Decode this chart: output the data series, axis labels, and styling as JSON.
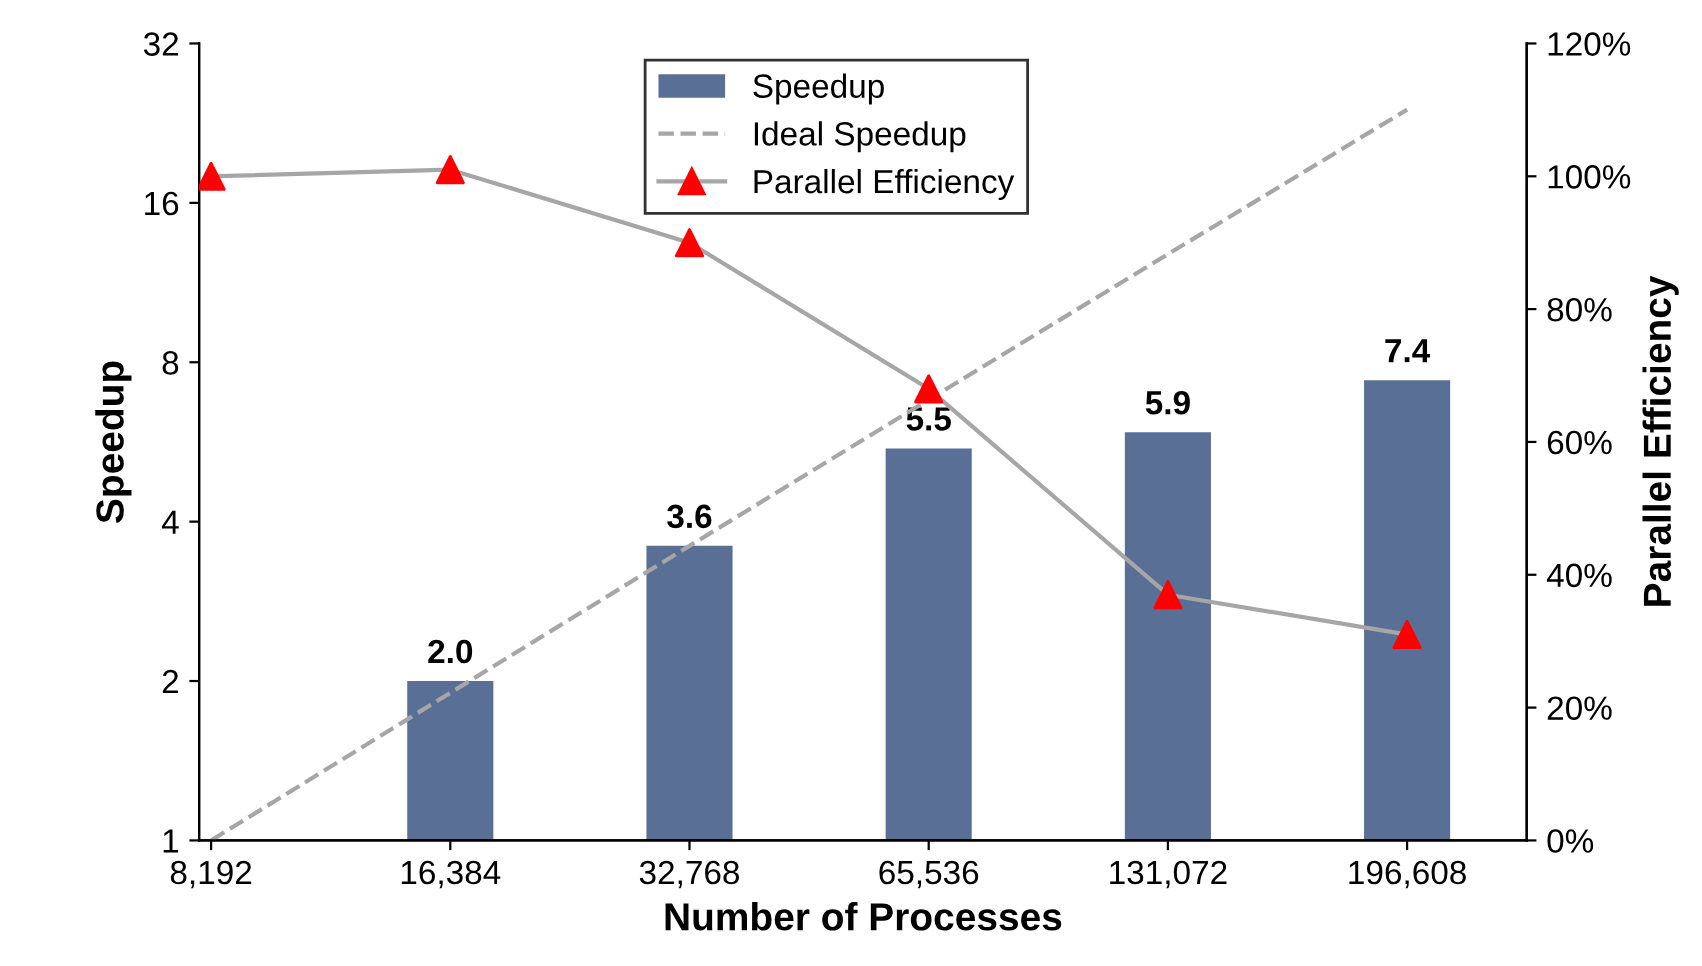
{
  "chart_data": {
    "type": "bar",
    "xlabel": "Number of Processes",
    "ylabel": "Speedup",
    "y2label": "Parallel Efficiency",
    "categories": [
      "8,192",
      "16,384",
      "32,768",
      "65,536",
      "131,072",
      "196,608"
    ],
    "log": "y",
    "legend": "top",
    "grid": false,
    "ylim": [
      1,
      32
    ],
    "yticks": [
      1,
      2,
      4,
      8,
      16,
      32
    ],
    "y2lim": [
      0,
      120
    ],
    "y2ticks": [
      {
        "value": 0,
        "label": "0%"
      },
      {
        "value": 20,
        "label": "20%"
      },
      {
        "value": 40,
        "label": "40%"
      },
      {
        "value": 60,
        "label": "60%"
      },
      {
        "value": 80,
        "label": "80%"
      },
      {
        "value": 100,
        "label": "100%"
      },
      {
        "value": 120,
        "label": "120%"
      }
    ],
    "series": [
      {
        "name": "Speedup",
        "color": "#5a6f96",
        "values": [
          null,
          2.0,
          3.6,
          5.5,
          5.9,
          7.4
        ],
        "value_labels": [
          null,
          "2.0",
          "3.6",
          "5.5",
          "5.9",
          "7.4"
        ]
      },
      {
        "name": "Ideal Speedup",
        "type": "line",
        "color": "#a6a6a6",
        "line_style": "dashed",
        "marker": "none",
        "values": [
          1,
          1.9,
          3.6,
          6.8,
          12.8,
          24
        ]
      },
      {
        "name": "Parallel Efficiency",
        "type": "line",
        "axis": "y2",
        "color": "#a6a6a6",
        "colors": [
          "#ff0000",
          "#ff0000",
          "#ff0000",
          "#ff0000",
          "#ff0000",
          "#ff0000"
        ],
        "line_style": "solid",
        "marker": "triangle",
        "values": [
          100,
          101,
          90,
          68,
          37,
          31
        ]
      }
    ]
  }
}
